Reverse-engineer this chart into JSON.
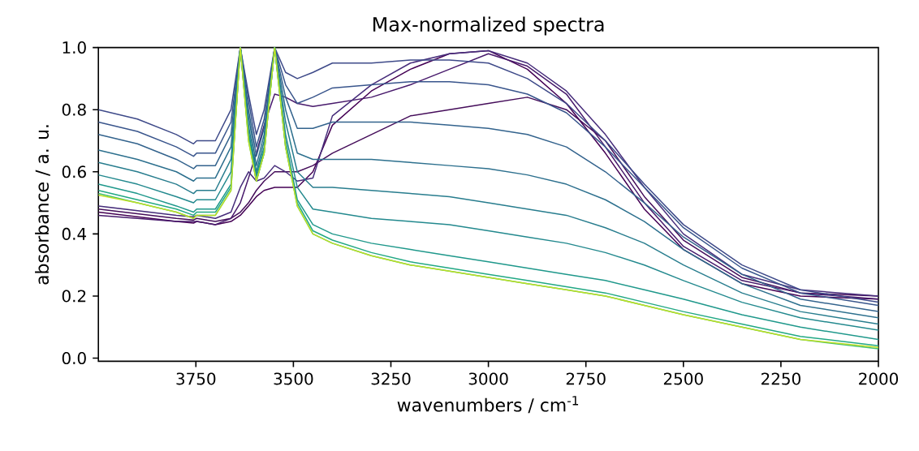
{
  "chart_data": {
    "type": "line",
    "title": "Max-normalized spectra",
    "xlabel": "wavenumbers / cm$^{-1}$",
    "ylabel": "absorbance / a. u.",
    "xlim": [
      4000,
      2000
    ],
    "xticks": [
      3750,
      3500,
      3250,
      3000,
      2750,
      2500,
      2250,
      2000
    ],
    "ylim": [
      -0.01,
      1.0
    ],
    "yticks": [
      {
        "value": 0,
        "label": "0.0"
      },
      {
        "value": 0.2,
        "label": "0.2"
      },
      {
        "value": 0.4,
        "label": "0.4"
      },
      {
        "value": 0.6,
        "label": "0.6"
      },
      {
        "value": 0.8,
        "label": "0.8"
      },
      {
        "value": 1.0,
        "label": "1.0"
      }
    ],
    "x": [
      4000,
      3900,
      3800,
      3756,
      3748,
      3700,
      3660,
      3636,
      3615,
      3595,
      3575,
      3548,
      3520,
      3490,
      3450,
      3400,
      3300,
      3200,
      3100,
      3000,
      2900,
      2800,
      2700,
      2600,
      2500,
      2350,
      2200,
      2000
    ],
    "series": [
      {
        "color": "#440154",
        "values": [
          0.47,
          0.455,
          0.44,
          0.435,
          0.44,
          0.43,
          0.44,
          0.46,
          0.49,
          0.52,
          0.54,
          0.55,
          0.55,
          0.55,
          0.6,
          0.75,
          0.86,
          0.93,
          0.98,
          0.99,
          0.93,
          0.82,
          0.66,
          0.48,
          0.35,
          0.24,
          0.2,
          0.19
        ]
      },
      {
        "color": "#450d5a",
        "values": [
          0.48,
          0.465,
          0.45,
          0.445,
          0.45,
          0.44,
          0.45,
          0.47,
          0.5,
          0.54,
          0.57,
          0.6,
          0.6,
          0.6,
          0.62,
          0.66,
          0.72,
          0.78,
          0.8,
          0.82,
          0.84,
          0.8,
          0.7,
          0.52,
          0.38,
          0.26,
          0.21,
          0.2
        ]
      },
      {
        "color": "#481a6c",
        "values": [
          0.46,
          0.45,
          0.44,
          0.44,
          0.44,
          0.43,
          0.45,
          0.5,
          0.58,
          0.66,
          0.75,
          0.85,
          0.84,
          0.82,
          0.81,
          0.82,
          0.84,
          0.88,
          0.93,
          0.98,
          0.94,
          0.85,
          0.68,
          0.5,
          0.36,
          0.25,
          0.21,
          0.19
        ]
      },
      {
        "color": "#472d7b",
        "values": [
          0.49,
          0.475,
          0.46,
          0.455,
          0.46,
          0.45,
          0.47,
          0.55,
          0.6,
          0.57,
          0.58,
          0.62,
          0.6,
          0.57,
          0.58,
          0.78,
          0.88,
          0.95,
          0.98,
          0.99,
          0.95,
          0.86,
          0.72,
          0.55,
          0.4,
          0.27,
          0.22,
          0.2
        ]
      },
      {
        "color": "#3e4a89",
        "values": [
          0.8,
          0.77,
          0.72,
          0.69,
          0.7,
          0.7,
          0.8,
          1.0,
          0.85,
          0.72,
          0.8,
          1.0,
          0.92,
          0.9,
          0.92,
          0.95,
          0.95,
          0.96,
          0.96,
          0.95,
          0.9,
          0.82,
          0.7,
          0.56,
          0.43,
          0.3,
          0.22,
          0.18
        ]
      },
      {
        "color": "#39558c",
        "values": [
          0.76,
          0.73,
          0.68,
          0.65,
          0.66,
          0.66,
          0.76,
          1.0,
          0.83,
          0.68,
          0.77,
          1.0,
          0.88,
          0.82,
          0.84,
          0.87,
          0.88,
          0.89,
          0.89,
          0.88,
          0.85,
          0.79,
          0.68,
          0.55,
          0.42,
          0.29,
          0.21,
          0.17
        ]
      },
      {
        "color": "#33638d",
        "values": [
          0.72,
          0.69,
          0.64,
          0.61,
          0.62,
          0.62,
          0.72,
          1.0,
          0.8,
          0.65,
          0.74,
          1.0,
          0.84,
          0.74,
          0.74,
          0.76,
          0.76,
          0.76,
          0.75,
          0.74,
          0.72,
          0.68,
          0.6,
          0.5,
          0.39,
          0.27,
          0.19,
          0.15
        ]
      },
      {
        "color": "#2d708e",
        "values": [
          0.67,
          0.64,
          0.6,
          0.57,
          0.58,
          0.58,
          0.68,
          1.0,
          0.78,
          0.62,
          0.72,
          1.0,
          0.8,
          0.66,
          0.64,
          0.64,
          0.64,
          0.63,
          0.62,
          0.61,
          0.59,
          0.56,
          0.51,
          0.44,
          0.35,
          0.24,
          0.17,
          0.13
        ]
      },
      {
        "color": "#287d8e",
        "values": [
          0.63,
          0.6,
          0.56,
          0.53,
          0.54,
          0.54,
          0.64,
          1.0,
          0.75,
          0.6,
          0.7,
          1.0,
          0.76,
          0.6,
          0.55,
          0.55,
          0.54,
          0.53,
          0.52,
          0.5,
          0.48,
          0.46,
          0.42,
          0.37,
          0.3,
          0.21,
          0.15,
          0.11
        ]
      },
      {
        "color": "#23898e",
        "values": [
          0.59,
          0.56,
          0.52,
          0.5,
          0.51,
          0.51,
          0.6,
          1.0,
          0.73,
          0.59,
          0.68,
          1.0,
          0.72,
          0.55,
          0.48,
          0.47,
          0.45,
          0.44,
          0.43,
          0.41,
          0.39,
          0.37,
          0.34,
          0.3,
          0.25,
          0.18,
          0.13,
          0.09
        ]
      },
      {
        "color": "#1f988b",
        "values": [
          0.56,
          0.53,
          0.49,
          0.47,
          0.48,
          0.48,
          0.56,
          1.0,
          0.72,
          0.58,
          0.67,
          1.0,
          0.7,
          0.51,
          0.43,
          0.4,
          0.37,
          0.35,
          0.33,
          0.31,
          0.29,
          0.27,
          0.25,
          0.22,
          0.19,
          0.14,
          0.1,
          0.06
        ]
      },
      {
        "color": "#22a884",
        "values": [
          0.54,
          0.51,
          0.48,
          0.46,
          0.47,
          0.47,
          0.55,
          1.0,
          0.71,
          0.57,
          0.66,
          1.0,
          0.68,
          0.5,
          0.41,
          0.38,
          0.34,
          0.31,
          0.29,
          0.27,
          0.25,
          0.23,
          0.21,
          0.18,
          0.15,
          0.11,
          0.07,
          0.04
        ]
      },
      {
        "color": "#44bf70",
        "values": [
          0.53,
          0.5,
          0.47,
          0.45,
          0.46,
          0.46,
          0.54,
          1.0,
          0.7,
          0.57,
          0.66,
          1.0,
          0.68,
          0.49,
          0.4,
          0.37,
          0.33,
          0.3,
          0.28,
          0.26,
          0.24,
          0.22,
          0.2,
          0.17,
          0.14,
          0.1,
          0.06,
          0.03
        ]
      },
      {
        "color": "#bddf26",
        "values": [
          0.525,
          0.5,
          0.47,
          0.45,
          0.46,
          0.46,
          0.54,
          1.0,
          0.7,
          0.57,
          0.66,
          1.0,
          0.68,
          0.49,
          0.4,
          0.37,
          0.33,
          0.3,
          0.28,
          0.26,
          0.24,
          0.22,
          0.2,
          0.17,
          0.14,
          0.1,
          0.06,
          0.035
        ]
      }
    ]
  }
}
